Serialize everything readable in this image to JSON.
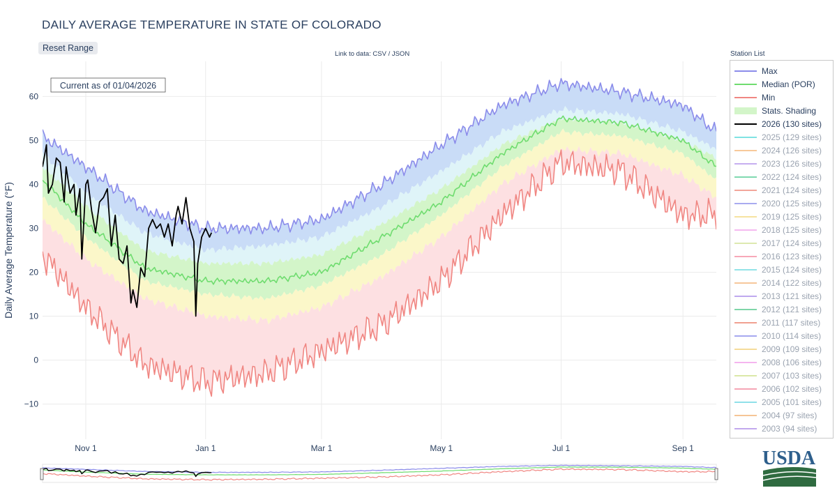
{
  "header": {
    "title": "DAILY AVERAGE TEMPERATURE IN STATE OF COLORADO",
    "reset_label": "Reset Range",
    "data_link": "Link to data: CSV / JSON",
    "current_as_of": "Current as of 01/04/2026",
    "station_list_title": "Station List"
  },
  "logo": {
    "text": "USDA"
  },
  "colors": {
    "max": "#8b8cea",
    "median": "#6fdc6f",
    "min": "#f08682",
    "current": "#000000",
    "band_max": "#c9dcf7",
    "band_upper": "#dff4f8",
    "band_mid": "#d3f5c9",
    "band_lower": "#fbf7c9",
    "band_min": "#fde0e2"
  },
  "legend": {
    "items": [
      {
        "label": "Max",
        "color": "#8b8cea",
        "kind": "line",
        "active": true
      },
      {
        "label": "Median (POR)",
        "color": "#6fdc6f",
        "kind": "line",
        "active": true
      },
      {
        "label": "Min",
        "color": "#f08682",
        "kind": "line",
        "active": true
      },
      {
        "label": "Stats. Shading",
        "color": "#d3f5c9",
        "kind": "shade",
        "active": true
      },
      {
        "label": "2026 (130 sites)",
        "color": "#000000",
        "kind": "line",
        "active": true
      },
      {
        "label": "2025 (129 sites)",
        "color": "#7fe3e3",
        "kind": "line",
        "active": false
      },
      {
        "label": "2024 (126 sites)",
        "color": "#f7c99a",
        "kind": "line",
        "active": false
      },
      {
        "label": "2023 (126 sites)",
        "color": "#c6aef0",
        "kind": "line",
        "active": false
      },
      {
        "label": "2022 (124 sites)",
        "color": "#7fd9b0",
        "kind": "line",
        "active": false
      },
      {
        "label": "2021 (124 sites)",
        "color": "#f2a69a",
        "kind": "line",
        "active": false
      },
      {
        "label": "2020 (125 sites)",
        "color": "#a9abf0",
        "kind": "line",
        "active": false
      },
      {
        "label": "2019 (125 sites)",
        "color": "#f6e3a0",
        "kind": "line",
        "active": false
      },
      {
        "label": "2018 (125 sites)",
        "color": "#f5b9f0",
        "kind": "line",
        "active": false
      },
      {
        "label": "2017 (124 sites)",
        "color": "#dde9b0",
        "kind": "line",
        "active": false
      },
      {
        "label": "2016 (123 sites)",
        "color": "#f7a8b8",
        "kind": "line",
        "active": false
      },
      {
        "label": "2015 (124 sites)",
        "color": "#93e3e8",
        "kind": "line",
        "active": false
      },
      {
        "label": "2014 (122 sites)",
        "color": "#f6c79a",
        "kind": "line",
        "active": false
      },
      {
        "label": "2013 (121 sites)",
        "color": "#bfa9ef",
        "kind": "line",
        "active": false
      },
      {
        "label": "2012 (121 sites)",
        "color": "#7fd6a8",
        "kind": "line",
        "active": false
      },
      {
        "label": "2011 (117 sites)",
        "color": "#f0a090",
        "kind": "line",
        "active": false
      },
      {
        "label": "2010 (114 sites)",
        "color": "#a6a8ef",
        "kind": "line",
        "active": false
      },
      {
        "label": "2009 (109 sites)",
        "color": "#f5dc9a",
        "kind": "line",
        "active": false
      },
      {
        "label": "2008 (106 sites)",
        "color": "#f5b5ef",
        "kind": "line",
        "active": false
      },
      {
        "label": "2007 (103 sites)",
        "color": "#dbe8a8",
        "kind": "line",
        "active": false
      },
      {
        "label": "2006 (102 sites)",
        "color": "#f6a5b5",
        "kind": "line",
        "active": false
      },
      {
        "label": "2005 (101 sites)",
        "color": "#8fe0ea",
        "kind": "line",
        "active": false
      },
      {
        "label": "2004 (97 sites)",
        "color": "#f6c596",
        "kind": "line",
        "active": false
      },
      {
        "label": "2003 (94 sites)",
        "color": "#c2a8ee",
        "kind": "line",
        "active": false
      }
    ]
  },
  "chart_data": {
    "type": "line",
    "ylabel": "Daily Average Temperature (°F)",
    "xlabel": "",
    "ylim": [
      -18,
      68
    ],
    "yticks": [
      -10,
      0,
      10,
      20,
      30,
      40,
      50,
      60
    ],
    "ytick_labels": [
      "−10",
      "0",
      "10",
      "20",
      "30",
      "40",
      "50",
      "60"
    ],
    "x_range": [
      "2025-10-10",
      "2026-09-18"
    ],
    "xticks": [
      {
        "label": "Nov 1",
        "date": "2025-11-01"
      },
      {
        "label": "Jan 1",
        "date": "2026-01-01"
      },
      {
        "label": "Mar 1",
        "date": "2026-03-01"
      },
      {
        "label": "May 1",
        "date": "2026-05-01"
      },
      {
        "label": "Jul 1",
        "date": "2026-07-01"
      },
      {
        "label": "Sep 1",
        "date": "2026-09-01"
      }
    ],
    "grid": true,
    "series_stats_anchor_dates": [
      "2025-10-10",
      "2025-11-01",
      "2025-12-01",
      "2026-01-01",
      "2026-02-01",
      "2026-03-01",
      "2026-04-01",
      "2026-05-01",
      "2026-06-01",
      "2026-07-01",
      "2026-08-01",
      "2026-09-01",
      "2026-09-18"
    ],
    "max": [
      51,
      44,
      34,
      30,
      30,
      32,
      40,
      49,
      58,
      63,
      61,
      58,
      52
    ],
    "p90": [
      47,
      38,
      29,
      25,
      26,
      28,
      35,
      43,
      52,
      57,
      56,
      52,
      48
    ],
    "p70": [
      44,
      35,
      25,
      22,
      22,
      24,
      31,
      39,
      49,
      55,
      54,
      50,
      46
    ],
    "median": [
      41,
      31,
      21,
      18,
      18,
      20,
      28,
      36,
      47,
      55,
      54,
      50,
      44
    ],
    "p30": [
      37,
      28,
      18,
      15,
      14,
      17,
      24,
      33,
      44,
      52,
      51,
      47,
      41
    ],
    "p10": [
      32,
      23,
      14,
      10,
      9,
      12,
      19,
      28,
      40,
      48,
      47,
      42,
      37
    ],
    "min": [
      24,
      12,
      -1,
      -5,
      -3,
      2,
      8,
      18,
      33,
      45,
      43,
      33,
      33
    ],
    "current_series": {
      "name": "2026 (130 sites)",
      "x": [
        "2025-10-10",
        "2025-10-12",
        "2025-10-13",
        "2025-10-15",
        "2025-10-17",
        "2025-10-19",
        "2025-10-21",
        "2025-10-22",
        "2025-10-24",
        "2025-10-26",
        "2025-10-27",
        "2025-10-29",
        "2025-10-30",
        "2025-11-01",
        "2025-11-02",
        "2025-11-04",
        "2025-11-06",
        "2025-11-08",
        "2025-11-10",
        "2025-11-12",
        "2025-11-14",
        "2025-11-16",
        "2025-11-18",
        "2025-11-20",
        "2025-11-22",
        "2025-11-24",
        "2025-11-25",
        "2025-11-27",
        "2025-11-29",
        "2025-12-01",
        "2025-12-03",
        "2025-12-05",
        "2025-12-07",
        "2025-12-09",
        "2025-12-11",
        "2025-12-13",
        "2025-12-15",
        "2025-12-17",
        "2025-12-18",
        "2025-12-20",
        "2025-12-22",
        "2025-12-24",
        "2025-12-26",
        "2025-12-27",
        "2025-12-28",
        "2025-12-30",
        "2026-01-01",
        "2026-01-03",
        "2026-01-04"
      ],
      "y": [
        44,
        49,
        38,
        40,
        46,
        45,
        36,
        44,
        38,
        40,
        33,
        39,
        23,
        40,
        41,
        34,
        29,
        36,
        37,
        39,
        26,
        33,
        23,
        22,
        26,
        13,
        16,
        12,
        21,
        19,
        30,
        32,
        30,
        31,
        28,
        31,
        26,
        33,
        35,
        31,
        37,
        30,
        27,
        10,
        22,
        28,
        30,
        28,
        29
      ]
    }
  }
}
